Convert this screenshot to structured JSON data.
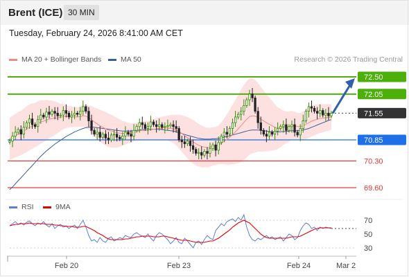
{
  "header": {
    "symbol": "Brent (ICE)",
    "timeframe": "30 MIN",
    "datetime": "Tuesday, February 24, 2026 8:41:00 AM CET"
  },
  "legend": {
    "ma20": "MA 20 + Bollinger Bands",
    "ma50": "MA 50",
    "ma20_color": "#f28b82",
    "ma50_color": "#3a5f9a",
    "credit": "Research © 2026 Trading Central"
  },
  "rsi_legend": {
    "rsi": "RSI",
    "nine_ma": "9MA",
    "rsi_color": "#5b7fd6",
    "nine_ma_color": "#e60000"
  },
  "chart_data": [
    {
      "type": "candlestick",
      "title": "Brent (ICE)",
      "timeframe": "30 MIN",
      "x_tick_labels": [
        "Feb 20",
        "Feb 23",
        "Feb 24",
        "Mar 2"
      ],
      "ylim": [
        69.4,
        72.7
      ],
      "last_price": 71.55,
      "levels": [
        {
          "label": "72.50",
          "value": 72.5,
          "kind": "resistance",
          "color": "#4caf0a"
        },
        {
          "label": "72.05",
          "value": 72.05,
          "kind": "resistance",
          "color": "#4caf0a"
        },
        {
          "label": "71.55",
          "value": 71.55,
          "kind": "last",
          "color": "#333333"
        },
        {
          "label": "70.85",
          "value": 70.85,
          "kind": "pivot",
          "color": "#1e6fe8"
        },
        {
          "label": "70.30",
          "value": 70.3,
          "kind": "support",
          "color": "#e53935"
        },
        {
          "label": "69.60",
          "value": 69.6,
          "kind": "support",
          "color": "#e53935"
        }
      ],
      "close": [
        70.82,
        70.95,
        71.05,
        71.12,
        71.0,
        71.18,
        71.3,
        71.4,
        71.25,
        71.2,
        71.38,
        71.5,
        71.45,
        71.58,
        71.52,
        71.6,
        71.55,
        71.48,
        71.5,
        71.62,
        71.55,
        71.45,
        71.5,
        71.55,
        71.52,
        71.6,
        71.72,
        71.6,
        71.35,
        71.1,
        71.0,
        71.05,
        70.92,
        71.0,
        70.9,
        70.85,
        70.98,
        71.0,
        70.92,
        70.88,
        70.95,
        71.05,
        71.0,
        70.95,
        71.1,
        71.2,
        71.3,
        71.25,
        71.15,
        71.2,
        71.32,
        71.25,
        71.2,
        71.25,
        71.18,
        71.2,
        71.22,
        71.25,
        71.2,
        71.15,
        70.85,
        70.8,
        70.75,
        70.82,
        70.7,
        70.6,
        70.5,
        70.52,
        70.45,
        70.55,
        70.5,
        70.62,
        70.72,
        70.58,
        70.78,
        70.95,
        71.05,
        71.0,
        71.15,
        71.3,
        71.45,
        71.52,
        71.6,
        71.75,
        71.9,
        72.05,
        71.95,
        71.6,
        71.3,
        71.1,
        71.0,
        70.95,
        71.05,
        71.0,
        71.08,
        71.15,
        71.2,
        71.25,
        71.1,
        71.2,
        71.25,
        71.05,
        70.98,
        71.15,
        71.35,
        71.6,
        71.72,
        71.68,
        71.6,
        71.55,
        71.62,
        71.5,
        71.55,
        71.48,
        71.55
      ],
      "ma20": [
        70.88,
        70.92,
        70.96,
        71.0,
        71.03,
        71.08,
        71.13,
        71.18,
        71.21,
        71.24,
        71.28,
        71.32,
        71.34,
        71.37,
        71.39,
        71.41,
        71.42,
        71.43,
        71.44,
        71.46,
        71.46,
        71.46,
        71.45,
        71.45,
        71.45,
        71.46,
        71.48,
        71.47,
        71.43,
        71.38,
        71.32,
        71.27,
        71.22,
        71.18,
        71.14,
        71.1,
        71.08,
        71.06,
        71.04,
        71.03,
        71.02,
        71.03,
        71.03,
        71.03,
        71.05,
        71.07,
        71.09,
        71.1,
        71.1,
        71.1,
        71.12,
        71.13,
        71.14,
        71.15,
        71.16,
        71.16,
        71.16,
        71.15,
        71.14,
        71.11,
        71.07,
        71.02,
        70.96,
        70.91,
        70.85,
        70.8,
        70.75,
        70.71,
        70.68,
        70.66,
        70.65,
        70.66,
        70.68,
        70.69,
        70.72,
        70.76,
        70.81,
        70.86,
        70.92,
        70.99,
        71.06,
        71.14,
        71.22,
        71.31,
        71.39,
        71.46,
        71.48,
        71.47,
        71.44,
        71.39,
        71.35,
        71.3,
        71.26,
        71.22,
        71.18,
        71.16,
        71.16,
        71.17,
        71.18,
        71.2,
        71.23,
        71.22,
        71.2,
        71.2,
        71.22,
        71.26,
        71.3,
        71.34,
        71.37,
        71.39,
        71.41,
        71.42,
        71.43,
        71.44,
        71.45
      ],
      "ma50": [
        69.55,
        69.62,
        69.7,
        69.78,
        69.86,
        69.94,
        70.02,
        70.1,
        70.18,
        70.26,
        70.34,
        70.42,
        70.49,
        70.56,
        70.62,
        70.68,
        70.74,
        70.79,
        70.84,
        70.89,
        70.94,
        70.98,
        71.02,
        71.06,
        71.09,
        71.12,
        71.15,
        71.17,
        71.18,
        71.18,
        71.18,
        71.17,
        71.16,
        71.15,
        71.14,
        71.13,
        71.12,
        71.11,
        71.1,
        71.09,
        71.08,
        71.08,
        71.08,
        71.08,
        71.09,
        71.1,
        71.11,
        71.12,
        71.12,
        71.12,
        71.13,
        71.13,
        71.13,
        71.13,
        71.12,
        71.11,
        71.1,
        71.09,
        71.08,
        71.06,
        71.04,
        71.02,
        70.99,
        70.97,
        70.95,
        70.93,
        70.91,
        70.89,
        70.88,
        70.87,
        70.87,
        70.87,
        70.88,
        70.88,
        70.89,
        70.9,
        70.92,
        70.94,
        70.96,
        70.98,
        71.0,
        71.02,
        71.04,
        71.06,
        71.08,
        71.1,
        71.11,
        71.11,
        71.11,
        71.1,
        71.09,
        71.08,
        71.07,
        71.06,
        71.06,
        71.06,
        71.06,
        71.07,
        71.07,
        71.08,
        71.09,
        71.09,
        71.09,
        71.1,
        71.11,
        71.13,
        71.15,
        71.18,
        71.21,
        71.24,
        71.27,
        71.3,
        71.33,
        71.36,
        71.38
      ],
      "bb_width": [
        0.55,
        0.56,
        0.57,
        0.58,
        0.58,
        0.59,
        0.6,
        0.6,
        0.59,
        0.58,
        0.58,
        0.57,
        0.55,
        0.53,
        0.5,
        0.47,
        0.44,
        0.4,
        0.36,
        0.33,
        0.3,
        0.28,
        0.27,
        0.26,
        0.26,
        0.27,
        0.29,
        0.3,
        0.32,
        0.35,
        0.38,
        0.4,
        0.42,
        0.43,
        0.44,
        0.44,
        0.43,
        0.41,
        0.39,
        0.36,
        0.33,
        0.3,
        0.27,
        0.25,
        0.24,
        0.23,
        0.23,
        0.24,
        0.25,
        0.25,
        0.26,
        0.27,
        0.28,
        0.29,
        0.3,
        0.31,
        0.33,
        0.35,
        0.37,
        0.4,
        0.44,
        0.48,
        0.51,
        0.54,
        0.56,
        0.57,
        0.57,
        0.56,
        0.55,
        0.53,
        0.52,
        0.51,
        0.5,
        0.5,
        0.51,
        0.55,
        0.6,
        0.66,
        0.72,
        0.78,
        0.84,
        0.9,
        0.95,
        0.98,
        1.0,
        1.0,
        0.98,
        0.95,
        0.9,
        0.85,
        0.8,
        0.75,
        0.7,
        0.65,
        0.6,
        0.55,
        0.5,
        0.45,
        0.42,
        0.4,
        0.38,
        0.37,
        0.36,
        0.36,
        0.37,
        0.39,
        0.4,
        0.4,
        0.4,
        0.39,
        0.38,
        0.37,
        0.36,
        0.35,
        0.34
      ]
    },
    {
      "type": "line",
      "title": "RSI",
      "ylim": [
        20,
        80
      ],
      "y_tick_labels": [
        "70",
        "50",
        "30"
      ],
      "reference_lines": [
        70,
        30
      ],
      "series": [
        {
          "name": "RSI",
          "color": "#5b7fd6",
          "values": [
            62,
            65,
            68,
            64,
            66,
            63,
            67,
            69,
            65,
            62,
            66,
            64,
            68,
            63,
            60,
            65,
            58,
            62,
            64,
            60,
            62,
            58,
            61,
            63,
            58,
            64,
            70,
            60,
            48,
            40,
            42,
            38,
            45,
            40,
            38,
            44,
            46,
            40,
            42,
            45,
            43,
            48,
            46,
            45,
            50,
            52,
            49,
            47,
            45,
            50,
            44,
            40,
            48,
            52,
            50,
            46,
            42,
            36,
            40,
            45,
            38,
            36,
            44,
            40,
            35,
            30,
            38,
            40,
            35,
            42,
            48,
            44,
            42,
            55,
            60,
            65,
            62,
            68,
            70,
            72,
            68,
            74,
            70,
            78,
            60,
            48,
            42,
            40,
            44,
            42,
            45,
            48,
            44,
            46,
            42,
            44,
            46,
            40,
            45,
            50,
            48,
            42,
            45,
            55,
            62,
            66,
            64,
            58,
            60,
            55,
            60,
            58,
            60,
            59,
            58
          ]
        },
        {
          "name": "9MA",
          "color": "#e60000",
          "values": [
            62,
            63,
            64,
            64,
            65,
            65,
            65,
            66,
            65,
            65,
            65,
            65,
            65,
            64,
            64,
            64,
            63,
            63,
            62,
            62,
            61,
            61,
            61,
            60,
            60,
            60,
            61,
            61,
            59,
            57,
            55,
            52,
            50,
            48,
            45,
            43,
            42,
            42,
            42,
            42,
            42,
            43,
            43,
            44,
            45,
            46,
            46,
            47,
            47,
            47,
            47,
            46,
            46,
            46,
            47,
            47,
            46,
            45,
            44,
            43,
            42,
            41,
            41,
            41,
            40,
            39,
            38,
            38,
            38,
            38,
            39,
            40,
            40,
            42,
            44,
            47,
            50,
            53,
            56,
            60,
            63,
            66,
            68,
            70,
            68,
            66,
            62,
            58,
            54,
            50,
            47,
            45,
            44,
            44,
            44,
            44,
            44,
            44,
            44,
            45,
            46,
            46,
            46,
            47,
            49,
            51,
            53,
            55,
            57,
            58,
            59,
            59,
            59,
            59,
            59
          ]
        }
      ]
    }
  ]
}
